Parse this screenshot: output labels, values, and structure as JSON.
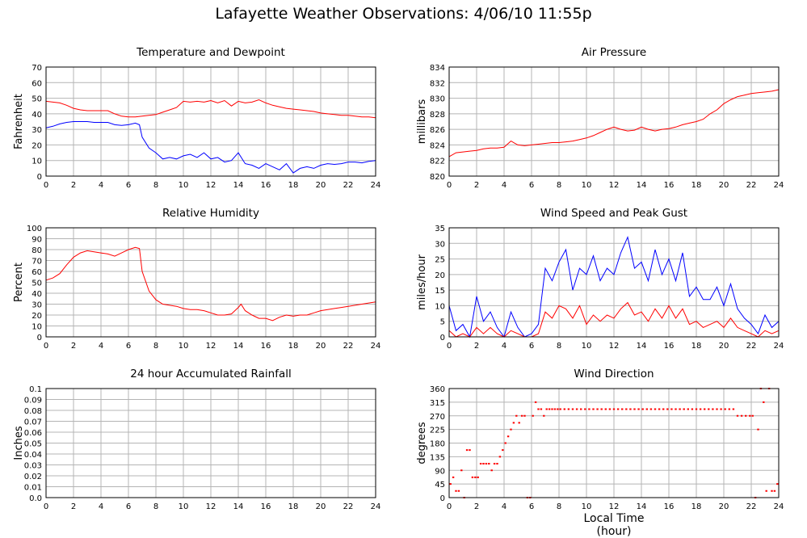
{
  "page": {
    "title": "Lafayette Weather Observations: 4/06/10 11:55p",
    "xaxis_title": "Local Time (hour)"
  },
  "chart_data": [
    {
      "id": "temp",
      "type": "line",
      "title": "Temperature and Dewpoint",
      "ylabel": "Fahrenheit",
      "xlim": [
        0,
        24
      ],
      "ylim": [
        0,
        70
      ],
      "yticks": [
        0,
        10,
        20,
        30,
        40,
        50,
        60,
        70
      ],
      "xticks": [
        0,
        2,
        4,
        6,
        8,
        10,
        12,
        14,
        16,
        18,
        20,
        22,
        24
      ],
      "grid": true,
      "series": [
        {
          "color": "#ff0000",
          "x": [
            0,
            0.5,
            1,
            1.5,
            2,
            2.5,
            3,
            3.5,
            4,
            4.5,
            5,
            5.5,
            6,
            6.5,
            7,
            7.5,
            8,
            8.5,
            9,
            9.5,
            10,
            10.5,
            11,
            11.5,
            12,
            12.5,
            13,
            13.5,
            14,
            14.5,
            15,
            15.5,
            16,
            16.5,
            17,
            17.5,
            18,
            18.5,
            19,
            19.5,
            20,
            20.5,
            21,
            21.5,
            22,
            22.5,
            23,
            23.5,
            24
          ],
          "y": [
            48,
            47.5,
            47,
            45.5,
            43.5,
            42.5,
            42,
            42,
            42,
            42,
            40,
            38.5,
            38,
            38,
            38.5,
            39,
            39.5,
            41,
            42.5,
            44,
            48,
            47.5,
            48,
            47.5,
            48.5,
            47,
            48.5,
            45,
            48,
            47,
            47.5,
            49,
            47,
            45.5,
            44.5,
            43.5,
            43,
            42.5,
            42,
            41.5,
            40.5,
            40,
            39.5,
            39,
            39,
            38.5,
            38,
            38,
            37.5
          ]
        },
        {
          "color": "#0000ff",
          "x": [
            0,
            0.5,
            1,
            1.5,
            2,
            2.5,
            3,
            3.5,
            4,
            4.5,
            5,
            5.5,
            6,
            6.5,
            6.8,
            7,
            7.5,
            8,
            8.5,
            9,
            9.5,
            10,
            10.5,
            11,
            11.5,
            12,
            12.5,
            13,
            13.5,
            14,
            14.5,
            15,
            15.5,
            16,
            16.5,
            17,
            17.5,
            18,
            18.5,
            19,
            19.5,
            20,
            20.5,
            21,
            21.5,
            22,
            22.5,
            23,
            23.5,
            24
          ],
          "y": [
            31,
            32,
            33.5,
            34.5,
            35,
            35,
            35,
            34.5,
            34.5,
            34.5,
            33,
            32.5,
            33,
            34,
            33,
            25,
            18,
            15,
            11,
            12,
            11,
            13,
            14,
            12,
            15,
            11,
            12,
            9,
            10,
            15,
            8,
            7,
            5,
            8,
            6,
            4,
            8,
            2,
            5,
            6,
            5,
            7,
            8,
            7.5,
            8,
            9,
            9,
            8.5,
            9.5,
            10
          ]
        }
      ]
    },
    {
      "id": "pressure",
      "type": "line",
      "title": "Air Pressure",
      "ylabel": "millibars",
      "xlim": [
        0,
        24
      ],
      "ylim": [
        820,
        834
      ],
      "yticks": [
        820,
        822,
        824,
        826,
        828,
        830,
        832,
        834
      ],
      "xticks": [
        0,
        2,
        4,
        6,
        8,
        10,
        12,
        14,
        16,
        18,
        20,
        22,
        24
      ],
      "grid": true,
      "series": [
        {
          "color": "#ff0000",
          "x": [
            0,
            0.5,
            1,
            1.5,
            2,
            2.5,
            3,
            3.5,
            4,
            4.5,
            5,
            5.5,
            6,
            6.5,
            7,
            7.5,
            8,
            8.5,
            9,
            9.5,
            10,
            10.5,
            11,
            11.5,
            12,
            12.5,
            13,
            13.5,
            14,
            14.5,
            15,
            15.5,
            16,
            16.5,
            17,
            17.5,
            18,
            18.5,
            19,
            19.5,
            20,
            20.5,
            21,
            21.5,
            22,
            22.5,
            23,
            23.5,
            24
          ],
          "y": [
            822.5,
            823,
            823.1,
            823.2,
            823.3,
            823.5,
            823.6,
            823.6,
            823.7,
            824.5,
            824,
            823.9,
            824,
            824.1,
            824.2,
            824.3,
            824.3,
            824.4,
            824.5,
            824.7,
            824.9,
            825.2,
            825.6,
            826,
            826.3,
            826,
            825.8,
            825.9,
            826.3,
            826,
            825.8,
            826,
            826.1,
            826.3,
            826.6,
            826.8,
            827,
            827.3,
            828,
            828.5,
            829.3,
            829.8,
            830.2,
            830.4,
            830.6,
            830.7,
            830.8,
            830.9,
            831.1
          ]
        }
      ]
    },
    {
      "id": "humidity",
      "type": "line",
      "title": "Relative Humidity",
      "ylabel": "Percent",
      "xlim": [
        0,
        24
      ],
      "ylim": [
        0,
        100
      ],
      "yticks": [
        0,
        10,
        20,
        30,
        40,
        50,
        60,
        70,
        80,
        90,
        100
      ],
      "xticks": [
        0,
        2,
        4,
        6,
        8,
        10,
        12,
        14,
        16,
        18,
        20,
        22,
        24
      ],
      "grid": true,
      "series": [
        {
          "color": "#ff0000",
          "x": [
            0,
            0.5,
            1,
            1.5,
            2,
            2.5,
            3,
            3.5,
            4,
            4.5,
            5,
            5.5,
            6,
            6.5,
            6.8,
            7,
            7.5,
            8,
            8.5,
            9,
            9.5,
            10,
            10.5,
            11,
            11.5,
            12,
            12.5,
            13,
            13.5,
            14,
            14.2,
            14.5,
            15,
            15.5,
            16,
            16.5,
            17,
            17.5,
            18,
            18.5,
            19,
            19.5,
            20,
            20.5,
            21,
            21.5,
            22,
            22.5,
            23,
            23.5,
            24
          ],
          "y": [
            52,
            54,
            58,
            66,
            73,
            77,
            79,
            78,
            77,
            76,
            74,
            77,
            80,
            82,
            81,
            60,
            42,
            34,
            30,
            29,
            28,
            26,
            25,
            25,
            24,
            22,
            20,
            20,
            21,
            27,
            30,
            24,
            20,
            17,
            17,
            15,
            18,
            20,
            19,
            20,
            20,
            22,
            24,
            25,
            26,
            27,
            28,
            29,
            30,
            31,
            32
          ]
        }
      ]
    },
    {
      "id": "wind",
      "type": "line",
      "title": "Wind Speed and Peak Gust",
      "ylabel": "miles/hour",
      "xlim": [
        0,
        24
      ],
      "ylim": [
        0,
        35
      ],
      "yticks": [
        0,
        5,
        10,
        15,
        20,
        25,
        30,
        35
      ],
      "xticks": [
        0,
        2,
        4,
        6,
        8,
        10,
        12,
        14,
        16,
        18,
        20,
        22,
        24
      ],
      "grid": true,
      "series": [
        {
          "color": "#0000ff",
          "x": [
            0,
            0.5,
            1,
            1.5,
            2,
            2.5,
            3,
            3.5,
            4,
            4.5,
            5,
            5.5,
            6,
            6.5,
            7,
            7.5,
            8,
            8.5,
            9,
            9.5,
            10,
            10.5,
            11,
            11.5,
            12,
            12.5,
            13,
            13.5,
            14,
            14.5,
            15,
            15.5,
            16,
            16.5,
            17,
            17.5,
            18,
            18.5,
            19,
            19.5,
            20,
            20.5,
            21,
            21.5,
            22,
            22.5,
            23,
            23.5,
            24
          ],
          "y": [
            10,
            2,
            4,
            0,
            13,
            5,
            8,
            3,
            0,
            8,
            3,
            0,
            1,
            4,
            22,
            18,
            24,
            28,
            15,
            22,
            20,
            26,
            18,
            22,
            20,
            27,
            32,
            22,
            24,
            18,
            28,
            20,
            25,
            18,
            27,
            13,
            16,
            12,
            12,
            16,
            10,
            17,
            9,
            6,
            4,
            1,
            7,
            3,
            5
          ]
        },
        {
          "color": "#ff0000",
          "x": [
            0,
            0.5,
            1,
            1.5,
            2,
            2.5,
            3,
            3.5,
            4,
            4.5,
            5,
            5.5,
            6,
            6.5,
            7,
            7.5,
            8,
            8.5,
            9,
            9.5,
            10,
            10.5,
            11,
            11.5,
            12,
            12.5,
            13,
            13.5,
            14,
            14.5,
            15,
            15.5,
            16,
            16.5,
            17,
            17.5,
            18,
            18.5,
            19,
            19.5,
            20,
            20.5,
            21,
            21.5,
            22,
            22.5,
            23,
            23.5,
            24
          ],
          "y": [
            2,
            0,
            1,
            0,
            3,
            1,
            3,
            1,
            0,
            2,
            1,
            0,
            0,
            1,
            8,
            6,
            10,
            9,
            6,
            10,
            4,
            7,
            5,
            7,
            6,
            9,
            11,
            7,
            8,
            5,
            9,
            6,
            10,
            6,
            9,
            4,
            5,
            3,
            4,
            5,
            3,
            6,
            3,
            2,
            1,
            0,
            2,
            1,
            2
          ]
        }
      ]
    },
    {
      "id": "rain",
      "type": "line",
      "title": "24 hour Accumulated Rainfall",
      "ylabel": "Inches",
      "xlim": [
        0,
        24
      ],
      "ylim": [
        0,
        0.1
      ],
      "yticks": [
        0.0,
        0.01,
        0.02,
        0.03,
        0.04,
        0.05,
        0.06,
        0.07,
        0.08,
        0.09,
        0.1
      ],
      "ytick_labels": [
        "0.0",
        "0.01",
        "0.02",
        "0.03",
        "0.04",
        "0.05",
        "0.06",
        "0.07",
        "0.08",
        "0.09",
        "0.1"
      ],
      "xticks": [
        0,
        2,
        4,
        6,
        8,
        10,
        12,
        14,
        16,
        18,
        20,
        22,
        24
      ],
      "grid": true,
      "series": [
        {
          "color": "#ff0000",
          "x": [
            0,
            24
          ],
          "y": [
            0,
            0
          ]
        }
      ]
    },
    {
      "id": "direction",
      "type": "scatter",
      "title": "Wind Direction",
      "ylabel": "degrees",
      "xlim": [
        0,
        24
      ],
      "ylim": [
        0,
        360
      ],
      "yticks": [
        0,
        45,
        90,
        135,
        180,
        225,
        270,
        315,
        360
      ],
      "xticks": [
        0,
        2,
        4,
        6,
        8,
        10,
        12,
        14,
        16,
        18,
        20,
        22,
        24
      ],
      "grid": true,
      "series": [
        {
          "color": "#ff0000",
          "x": [
            0.1,
            0.3,
            0.5,
            0.7,
            0.9,
            1.1,
            1.3,
            1.5,
            1.7,
            1.9,
            2.1,
            2.3,
            2.5,
            2.7,
            2.9,
            3.1,
            3.3,
            3.5,
            3.7,
            3.9,
            4.1,
            4.3,
            4.5,
            4.7,
            4.9,
            5.1,
            5.3,
            5.5,
            5.7,
            5.9,
            6.1,
            6.3,
            6.5,
            6.7,
            6.9,
            7.1,
            7.3,
            7.5,
            7.7,
            7.9,
            8.1,
            8.4,
            8.7,
            9.0,
            9.3,
            9.6,
            9.9,
            10.2,
            10.5,
            10.8,
            11.1,
            11.4,
            11.7,
            12.0,
            12.3,
            12.6,
            12.9,
            13.2,
            13.5,
            13.8,
            14.1,
            14.4,
            14.7,
            15.0,
            15.3,
            15.6,
            15.9,
            16.2,
            16.5,
            16.8,
            17.1,
            17.4,
            17.7,
            18.0,
            18.3,
            18.6,
            18.9,
            19.2,
            19.5,
            19.8,
            20.1,
            20.4,
            20.7,
            21.0,
            21.3,
            21.6,
            21.9,
            22.1,
            22.3,
            22.5,
            22.7,
            22.9,
            23.1,
            23.3,
            23.5,
            23.7,
            23.9
          ],
          "y": [
            45,
            67,
            22,
            22,
            90,
            0,
            157,
            157,
            67,
            67,
            67,
            112,
            112,
            112,
            112,
            90,
            112,
            112,
            135,
            157,
            180,
            202,
            225,
            247,
            270,
            247,
            270,
            270,
            0,
            0,
            270,
            315,
            292,
            292,
            270,
            292,
            292,
            292,
            292,
            292,
            292,
            292,
            292,
            292,
            292,
            292,
            292,
            292,
            292,
            292,
            292,
            292,
            292,
            292,
            292,
            292,
            292,
            292,
            292,
            292,
            292,
            292,
            292,
            292,
            292,
            292,
            292,
            292,
            292,
            292,
            292,
            292,
            292,
            292,
            292,
            292,
            292,
            292,
            292,
            292,
            292,
            292,
            292,
            270,
            270,
            270,
            270,
            270,
            0,
            225,
            360,
            315,
            22,
            360,
            22,
            22,
            45
          ]
        }
      ]
    }
  ]
}
